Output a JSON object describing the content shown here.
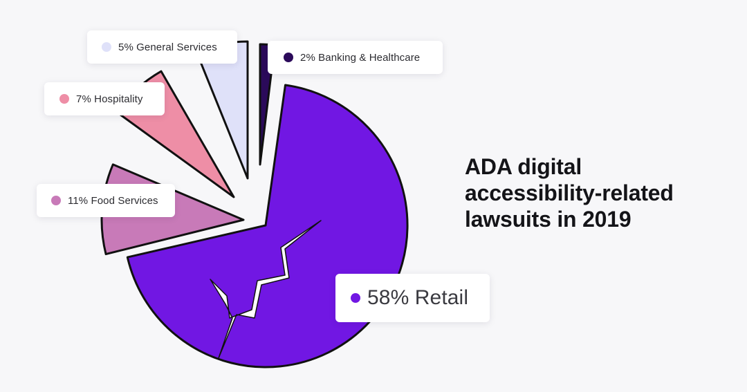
{
  "title_lines": [
    "ADA digital",
    "accessibility-related",
    "lawsuits in 2019"
  ],
  "chart_data": {
    "type": "pie",
    "title": "ADA digital accessibility-related lawsuits in 2019",
    "legend_placement": "callouts next to slices",
    "categories": [
      "Retail",
      "Food Services",
      "Hospitality",
      "General Services",
      "Banking & Healthcare"
    ],
    "values": [
      58,
      11,
      7,
      5,
      2
    ],
    "unit": "%",
    "slices": [
      {
        "key": "retail",
        "category": "Retail",
        "value": 58,
        "label": "58% Retail",
        "color": "#7117e3"
      },
      {
        "key": "food",
        "category": "Food Services",
        "value": 11,
        "label": "11% Food Services",
        "color": "#c87ab8"
      },
      {
        "key": "hosp",
        "category": "Hospitality",
        "value": 7,
        "label": "7% Hospitality",
        "color": "#ee8ea6"
      },
      {
        "key": "general",
        "category": "General Services",
        "value": 5,
        "label": "5% General Services",
        "color": "#dfe1f9"
      },
      {
        "key": "banking",
        "category": "Banking & Healthcare",
        "value": 2,
        "label": "2% Banking & Healthcare",
        "color": "#2b0a5a"
      }
    ]
  },
  "colors": {
    "background": "#f7f7f9",
    "outline": "#111111",
    "crack": "#ffffff"
  }
}
